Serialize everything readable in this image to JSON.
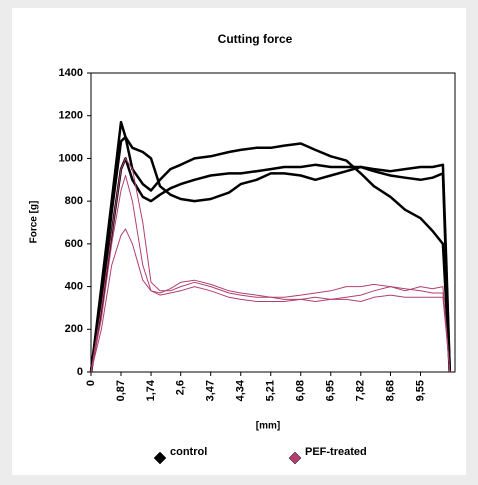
{
  "chart_data": {
    "type": "line",
    "title": "Cutting force",
    "xlabel": "[mm]",
    "ylabel": "Force [g]",
    "x": [
      0,
      0.3,
      0.6,
      0.87,
      1.0,
      1.2,
      1.5,
      1.74,
      2.0,
      2.3,
      2.6,
      3.0,
      3.47,
      4.0,
      4.34,
      4.8,
      5.21,
      5.6,
      6.08,
      6.5,
      6.95,
      7.4,
      7.82,
      8.2,
      8.68,
      9.1,
      9.55,
      9.9,
      10.2,
      10.3,
      10.4
    ],
    "series": [
      {
        "name": "control",
        "color": "#000000",
        "values": [
          [
            0,
            400,
            800,
            1170,
            1100,
            950,
            880,
            850,
            900,
            950,
            970,
            1000,
            1010,
            1030,
            1040,
            1050,
            1050,
            1060,
            1070,
            1040,
            1010,
            990,
            930,
            870,
            820,
            760,
            720,
            660,
            600,
            300,
            0
          ],
          [
            0,
            350,
            750,
            1080,
            1100,
            1050,
            1030,
            1000,
            870,
            830,
            810,
            800,
            810,
            840,
            880,
            900,
            930,
            930,
            920,
            900,
            920,
            940,
            960,
            940,
            920,
            910,
            900,
            910,
            930,
            450,
            0
          ],
          [
            0,
            300,
            650,
            950,
            1000,
            900,
            820,
            800,
            830,
            860,
            880,
            900,
            920,
            930,
            930,
            940,
            950,
            960,
            960,
            970,
            960,
            960,
            960,
            950,
            940,
            950,
            960,
            960,
            970,
            500,
            0
          ]
        ]
      },
      {
        "name": "PEF-treated",
        "color": "#b0406f",
        "values": [
          [
            0,
            300,
            650,
            950,
            1000,
            950,
            700,
            420,
            380,
            380,
            400,
            420,
            400,
            370,
            360,
            350,
            350,
            340,
            340,
            350,
            340,
            350,
            360,
            380,
            400,
            390,
            380,
            370,
            370,
            200,
            0
          ],
          [
            0,
            250,
            600,
            850,
            920,
            800,
            500,
            380,
            370,
            390,
            420,
            430,
            410,
            380,
            370,
            360,
            350,
            350,
            360,
            370,
            380,
            400,
            400,
            410,
            400,
            380,
            400,
            390,
            400,
            200,
            0
          ],
          [
            0,
            200,
            500,
            640,
            670,
            600,
            430,
            380,
            360,
            370,
            380,
            400,
            380,
            350,
            340,
            330,
            330,
            330,
            340,
            330,
            340,
            340,
            330,
            350,
            360,
            350,
            350,
            350,
            350,
            180,
            0
          ]
        ]
      }
    ],
    "xlim": [
      0,
      10.55
    ],
    "xticks": [
      0,
      {
        "value": 0.87,
        "label": "0,87"
      },
      {
        "value": 1.74,
        "label": "1,74"
      },
      {
        "value": 2.6,
        "label": "2,6"
      },
      {
        "value": 3.47,
        "label": "3,47"
      },
      {
        "value": 4.34,
        "label": "4,34"
      },
      {
        "value": 5.21,
        "label": "5,21"
      },
      {
        "value": 6.08,
        "label": "6,08"
      },
      {
        "value": 6.95,
        "label": "6,95"
      },
      {
        "value": 7.82,
        "label": "7,82"
      },
      {
        "value": 8.68,
        "label": "8,68"
      },
      {
        "value": 9.55,
        "label": "9,55"
      }
    ],
    "ylim": [
      0,
      1400
    ],
    "yticks": [
      0,
      200,
      400,
      600,
      800,
      1000,
      1200,
      1400
    ],
    "grid": false,
    "legend": "bottom"
  }
}
